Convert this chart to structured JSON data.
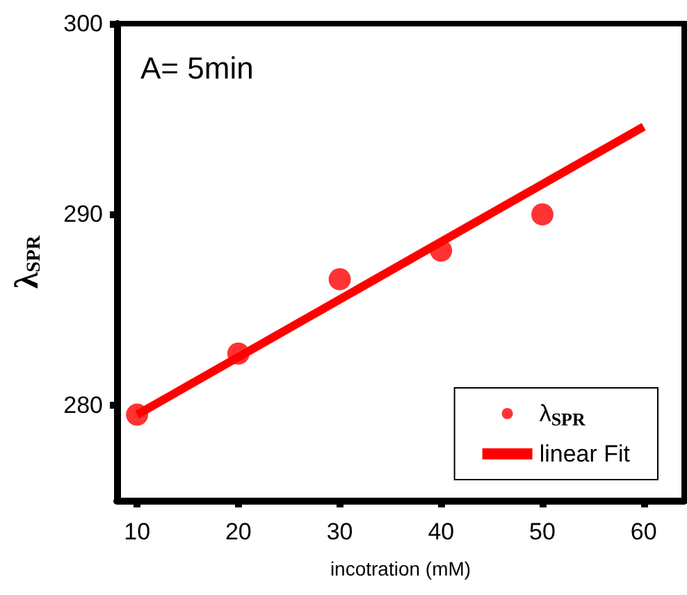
{
  "chart_data": {
    "type": "scatter",
    "annotations": [
      "A= 5min"
    ],
    "xlabel": "incotration (mM)",
    "ylabel": "λ$_{SPR}$",
    "xlim": [
      8,
      64
    ],
    "xticks": [
      10,
      20,
      30,
      40,
      50,
      60
    ],
    "ylim": [
      275,
      300
    ],
    "yticks": [
      280,
      290,
      300
    ],
    "grid": false,
    "legend": "bottom right",
    "series": [
      {
        "name": "λ$_{SPR}$",
        "color": "#ff0000",
        "marker": "circle",
        "x": [
          10,
          20,
          30,
          40,
          50
        ],
        "values": [
          279.5,
          282.7,
          286.6,
          288.1,
          290.0
        ]
      },
      {
        "name": "linear Fit",
        "type": "line",
        "color": "#ff0000",
        "marker": "none",
        "line_style": "solid",
        "x": [
          10,
          60
        ],
        "values": [
          279.5,
          294.6
        ]
      }
    ]
  }
}
